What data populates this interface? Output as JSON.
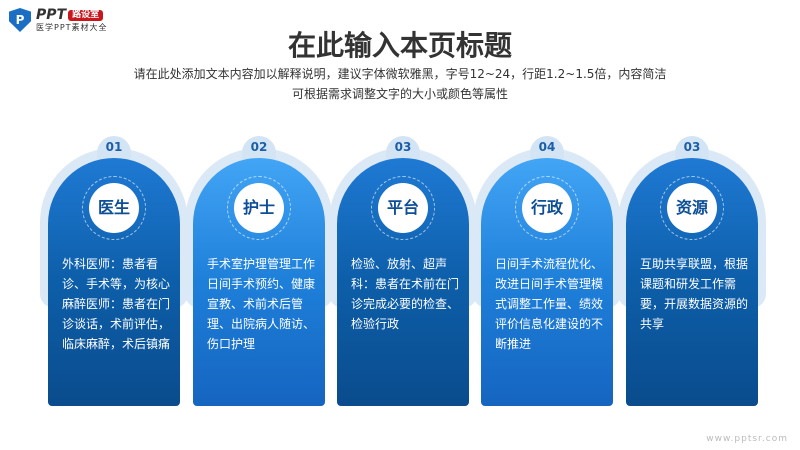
{
  "logo": {
    "brand": "PPT",
    "badge": "路设室",
    "tagline": "医学PPT素材大全"
  },
  "title": "在此输入本页标题",
  "subtitle_lines": [
    "请在此处添加文本内容加以解释说明，建议字体微软雅黑，字号12~24，行距1.2~1.5倍，内容简洁",
    "可根据需求调整文字的大小或颜色等属性"
  ],
  "cards": [
    {
      "num": "01",
      "title": "医生",
      "text": "外科医师：患者看诊、手术等，为核心\n麻醉医师：患者在门诊谈话，术前评估，临床麻醉，术后镇痛",
      "style": "dark"
    },
    {
      "num": "02",
      "title": "护士",
      "text": "手术室护理管理工作\n日间手术预约、健康宣教、术前术后管理、出院病人随访、伤口护理",
      "style": "light"
    },
    {
      "num": "03",
      "title": "平台",
      "text": "检验、放射、超声科：患者在术前在门诊完成必要的检查、检验行政",
      "style": "dark"
    },
    {
      "num": "04",
      "title": "行政",
      "text": "日间手术流程优化、改进日间手术管理模式调整工作量、绩效评价信息化建设的不断推进",
      "style": "light"
    },
    {
      "num": "03",
      "title": "资源",
      "text": "互助共享联盟，根据课题和研发工作需要，开展数据资源的共享",
      "style": "dark"
    }
  ],
  "watermark": "www.pptsr.com",
  "colors": {
    "dark_card": "#0d5ea9",
    "light_card": "#1e7fd9",
    "badge": "#c8161d"
  }
}
